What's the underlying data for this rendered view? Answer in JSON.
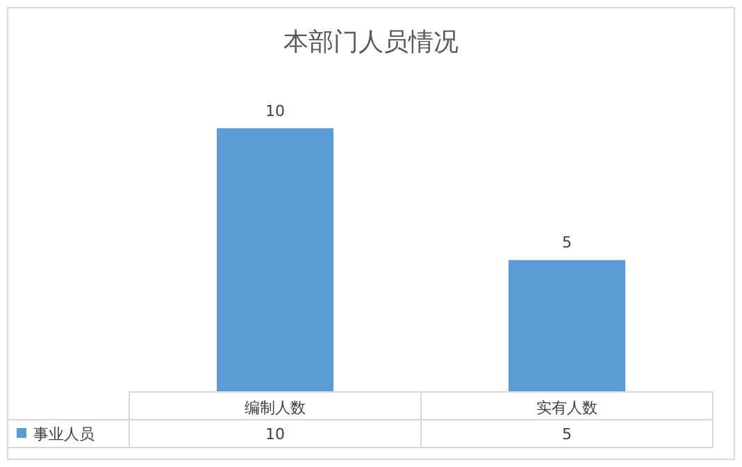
{
  "chart_data": {
    "type": "bar",
    "title": "本部门人员情况",
    "categories": [
      "编制人数",
      "实有人数"
    ],
    "series": [
      {
        "name": "事业人员",
        "color": "#5b9bd5",
        "values": [
          10,
          5
        ]
      }
    ],
    "annotations": [
      {
        "text": "10",
        "x": "编制人数",
        "y": 10
      },
      {
        "text": "5",
        "x": "实有人数",
        "y": 5
      }
    ],
    "data_labels": true,
    "legend": "bottom",
    "grid": false
  }
}
